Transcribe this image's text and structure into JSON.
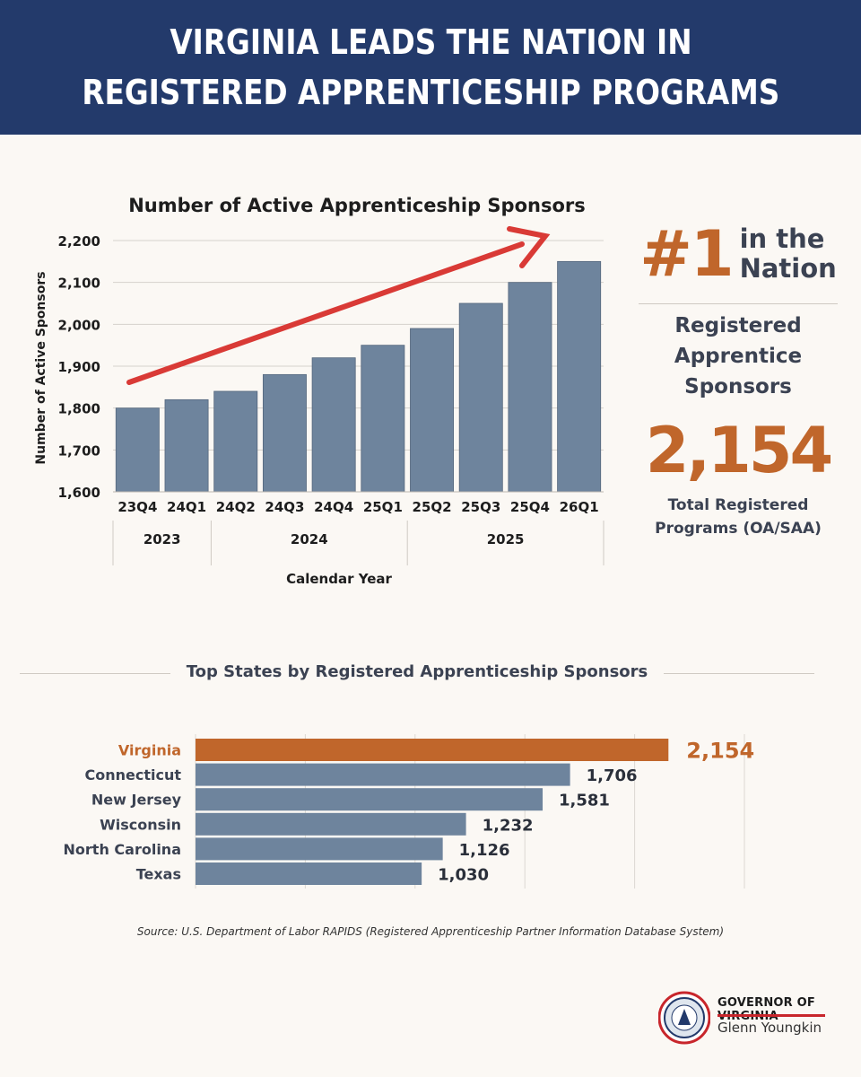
{
  "header": {
    "line1": "VIRGINIA LEADS THE NATION IN",
    "line2": "REGISTERED APPRENTICESHIP PROGRAMS"
  },
  "stats": {
    "rank": "#1",
    "rank_suffix_1": "in the",
    "rank_suffix_2": "Nation",
    "label_1": "Registered",
    "label_2": "Apprentice",
    "label_3": "Sponsors",
    "value": "2,154",
    "sub_1": "Total Registered",
    "sub_2": "Programs (OA/SAA)"
  },
  "bottom": {
    "section_title": "Top States by Registered Apprenticeship Sponsors",
    "source": "Source: U.S. Department of Labor RAPIDS (Registered Apprenticeship Partner Information Database System)"
  },
  "footer": {
    "gov_title": "GOVERNOR OF VIRGINIA",
    "gov_name": "Glenn Youngkin"
  },
  "colors": {
    "header_bg": "#233a6b",
    "bar": "#6e849d",
    "accent": "#c0662b",
    "trend_arrow": "#d93a36"
  },
  "chart_data": [
    {
      "type": "bar",
      "title": "Number of Active Apprenticeship Sponsors",
      "xlabel": "Calendar Year",
      "ylabel": "Number of Active Sponsors",
      "ylim": [
        1600,
        2200
      ],
      "yticks": [
        "1,600",
        "1,700",
        "1,800",
        "1,900",
        "2,000",
        "2,100",
        "2,200"
      ],
      "categories": [
        "23Q4",
        "24Q1",
        "24Q2",
        "24Q3",
        "24Q4",
        "25Q1",
        "25Q2",
        "25Q3",
        "25Q4",
        "26Q1"
      ],
      "values": [
        1800,
        1820,
        1840,
        1880,
        1920,
        1950,
        1990,
        2050,
        2100,
        2150
      ],
      "year_groups": [
        {
          "label": "2023",
          "start": 0,
          "end": 1
        },
        {
          "label": "2024",
          "start": 2,
          "end": 5
        },
        {
          "label": "2025",
          "start": 6,
          "end": 9
        }
      ],
      "grid": true,
      "annotation": "upward trend arrow"
    },
    {
      "type": "bar",
      "orientation": "horizontal",
      "title": "Top States by Registered Apprenticeship Sponsors",
      "categories": [
        "Virginia",
        "Connecticut",
        "New Jersey",
        "Wisconsin",
        "North Carolina",
        "Texas"
      ],
      "values": [
        2154,
        1706,
        1581,
        1232,
        1126,
        1030
      ],
      "value_labels": [
        "2,154",
        "1,706",
        "1,581",
        "1,232",
        "1,126",
        "1,030"
      ],
      "highlight": "Virginia",
      "xlim": [
        0,
        2500
      ],
      "grid": true
    }
  ]
}
